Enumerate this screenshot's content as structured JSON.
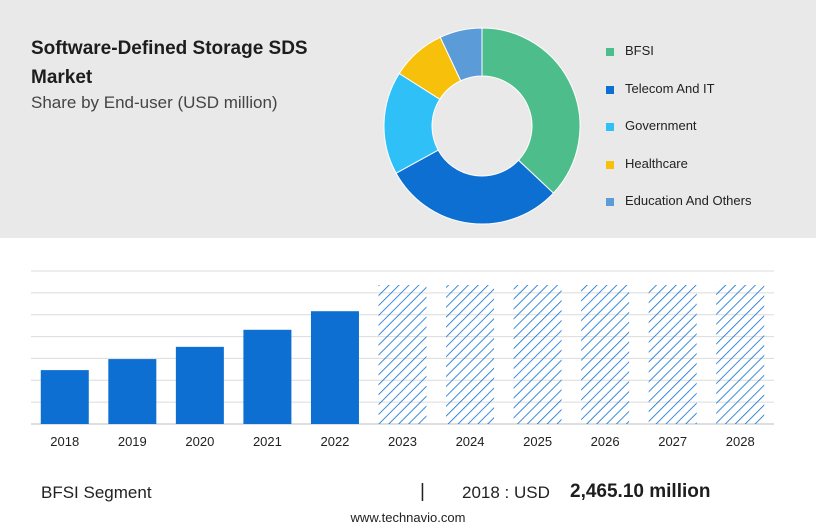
{
  "header": {
    "title": "Software-Defined Storage SDS Market",
    "subtitle": "Share by End-user (USD million)"
  },
  "colors": {
    "bfsi": "#4dbd8c",
    "telecom": "#0c6fd1",
    "government": "#2ec0f7",
    "healthcare": "#f7c00a",
    "education": "#5b9bd8",
    "bar": "#0c6fd1",
    "hatch": "#0c6fd1"
  },
  "legend": [
    {
      "label": "BFSI",
      "color": "#4dbd8c"
    },
    {
      "label": "Telecom And IT",
      "color": "#0c6fd1"
    },
    {
      "label": "Government",
      "color": "#2ec0f7"
    },
    {
      "label": "Healthcare",
      "color": "#f7c00a"
    },
    {
      "label": "Education And Others",
      "color": "#5b9bd8"
    }
  ],
  "footer": {
    "segment_label": "BFSI Segment",
    "divider": "|",
    "year_text": "2018 : USD",
    "value_text": "2,465.10 million",
    "source": "www.technavio.com"
  },
  "chart_data": [
    {
      "type": "pie",
      "subtype": "donut",
      "title": "Share by End-user (USD million)",
      "labels": [
        "BFSI",
        "Telecom And IT",
        "Government",
        "Healthcare",
        "Education And Others"
      ],
      "values": [
        37,
        30,
        17,
        9,
        7
      ],
      "colors": [
        "#4dbd8c",
        "#0c6fd1",
        "#2ec0f7",
        "#f7c00a",
        "#5b9bd8"
      ],
      "legend": "right"
    },
    {
      "type": "bar",
      "categories": [
        "2018",
        "2019",
        "2020",
        "2021",
        "2022",
        "2023",
        "2024",
        "2025",
        "2026",
        "2027",
        "2028"
      ],
      "values": [
        2465.1,
        2970,
        3530,
        4310,
        5160,
        6360,
        6360,
        6360,
        6360,
        6360,
        6360
      ],
      "forecast_from": "2023",
      "ylim": [
        0,
        7000
      ],
      "grid": true,
      "xlabel": "",
      "ylabel": ""
    }
  ]
}
